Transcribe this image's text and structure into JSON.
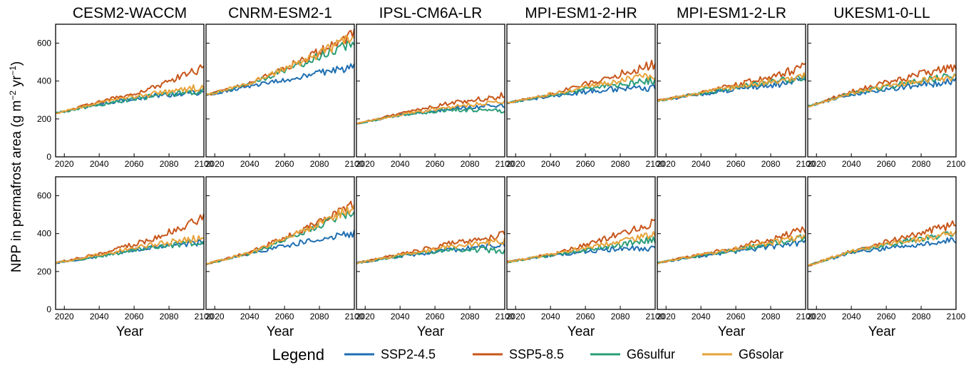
{
  "chart_data": {
    "type": "line",
    "layout": "2 rows x 6 columns small multiples",
    "ylabel_base": "NPP in permafrost area (g m",
    "ylabel_sup1": "−2",
    "ylabel_mid": " yr",
    "ylabel_sup2": "−1",
    "ylabel_end": ")",
    "xlabel": "Year",
    "xlim": [
      2015,
      2100
    ],
    "ylim": [
      0,
      700
    ],
    "xticks": [
      2020,
      2040,
      2060,
      2080,
      2100
    ],
    "yticks": [
      0,
      200,
      400,
      600
    ],
    "legend": {
      "title": "Legend",
      "placement": "bottom",
      "entries": [
        {
          "name": "SSP2-4.5",
          "color": "#1f6fb2"
        },
        {
          "name": "SSP5-8.5",
          "color": "#c8561a"
        },
        {
          "name": "G6sulfur",
          "color": "#2a9d78"
        },
        {
          "name": "G6solar",
          "color": "#e8a33a"
        }
      ]
    },
    "models": [
      "CESM2-WACCM",
      "CNRM-ESM2-1",
      "IPSL-CM6A-LR",
      "MPI-ESM1-2-HR",
      "MPI-ESM1-2-LR",
      "UKESM1-0-LL"
    ],
    "rows": [
      {
        "panels": [
          {
            "model": "CESM2-WACCM",
            "series": [
              {
                "name": "SSP2-4.5",
                "x": [
                  2015,
                  2040,
                  2070,
                  2100
                ],
                "y": [
                  230,
                  280,
                  320,
                  345
                ]
              },
              {
                "name": "SSP5-8.5",
                "x": [
                  2015,
                  2040,
                  2070,
                  2100
                ],
                "y": [
                  230,
                  290,
                  360,
                  470
                ]
              },
              {
                "name": "G6sulfur",
                "x": [
                  2015,
                  2040,
                  2070,
                  2100
                ],
                "y": [
                  230,
                  275,
                  320,
                  350
                ]
              },
              {
                "name": "G6solar",
                "x": [
                  2015,
                  2040,
                  2070,
                  2100
                ],
                "y": [
                  230,
                  285,
                  330,
                  370
                ]
              }
            ]
          },
          {
            "model": "CNRM-ESM2-1",
            "series": [
              {
                "name": "SSP2-4.5",
                "x": [
                  2015,
                  2040,
                  2070,
                  2100
                ],
                "y": [
                  325,
                  375,
                  420,
                  480
                ]
              },
              {
                "name": "SSP5-8.5",
                "x": [
                  2015,
                  2040,
                  2070,
                  2100
                ],
                "y": [
                  325,
                  390,
                  510,
                  645
                ]
              },
              {
                "name": "G6sulfur",
                "x": [
                  2015,
                  2040,
                  2070,
                  2100
                ],
                "y": [
                  325,
                  385,
                  490,
                  610
                ]
              },
              {
                "name": "G6solar",
                "x": [
                  2015,
                  2040,
                  2070,
                  2100
                ],
                "y": [
                  325,
                  390,
                  500,
                  635
                ]
              }
            ]
          },
          {
            "model": "IPSL-CM6A-LR",
            "series": [
              {
                "name": "SSP2-4.5",
                "x": [
                  2015,
                  2040,
                  2070,
                  2100
                ],
                "y": [
                  175,
                  220,
                  255,
                  275
                ]
              },
              {
                "name": "SSP5-8.5",
                "x": [
                  2015,
                  2040,
                  2070,
                  2100
                ],
                "y": [
                  175,
                  230,
                  285,
                  325
                ]
              },
              {
                "name": "G6sulfur",
                "x": [
                  2015,
                  2040,
                  2070,
                  2100
                ],
                "y": [
                  175,
                  220,
                  250,
                  240
                ]
              },
              {
                "name": "G6solar",
                "x": [
                  2015,
                  2040,
                  2070,
                  2100
                ],
                "y": [
                  175,
                  222,
                  265,
                  290
                ]
              }
            ]
          },
          {
            "model": "MPI-ESM1-2-HR",
            "series": [
              {
                "name": "SSP2-4.5",
                "x": [
                  2015,
                  2040,
                  2070,
                  2100
                ],
                "y": [
                  285,
                  320,
                  355,
                  365
                ]
              },
              {
                "name": "SSP5-8.5",
                "x": [
                  2015,
                  2040,
                  2070,
                  2100
                ],
                "y": [
                  285,
                  330,
                  410,
                  490
                ]
              },
              {
                "name": "G6sulfur",
                "x": [
                  2015,
                  2040,
                  2070,
                  2100
                ],
                "y": [
                  285,
                  325,
                  370,
                  405
                ]
              },
              {
                "name": "G6solar",
                "x": [
                  2015,
                  2040,
                  2070,
                  2100
                ],
                "y": [
                  285,
                  330,
                  385,
                  430
                ]
              }
            ]
          },
          {
            "model": "MPI-ESM1-2-LR",
            "series": [
              {
                "name": "SSP2-4.5",
                "x": [
                  2015,
                  2040,
                  2070,
                  2100
                ],
                "y": [
                  295,
                  330,
                  370,
                  400
                ]
              },
              {
                "name": "SSP5-8.5",
                "x": [
                  2015,
                  2040,
                  2070,
                  2100
                ],
                "y": [
                  295,
                  340,
                  400,
                  475
                ]
              },
              {
                "name": "G6sulfur",
                "x": [
                  2015,
                  2040,
                  2070,
                  2100
                ],
                "y": [
                  295,
                  335,
                  380,
                  420
                ]
              },
              {
                "name": "G6solar",
                "x": [
                  2015,
                  2040,
                  2070,
                  2100
                ],
                "y": [
                  295,
                  338,
                  385,
                  425
                ]
              }
            ]
          },
          {
            "model": "UKESM1-0-LL",
            "series": [
              {
                "name": "SSP2-4.5",
                "x": [
                  2015,
                  2040,
                  2070,
                  2100
                ],
                "y": [
                  265,
                  330,
                  370,
                  400
                ]
              },
              {
                "name": "SSP5-8.5",
                "x": [
                  2015,
                  2040,
                  2070,
                  2100
                ],
                "y": [
                  265,
                  345,
                  415,
                  480
                ]
              },
              {
                "name": "G6sulfur",
                "x": [
                  2015,
                  2040,
                  2070,
                  2100
                ],
                "y": [
                  265,
                  335,
                  385,
                  430
                ]
              },
              {
                "name": "G6solar",
                "x": [
                  2015,
                  2040,
                  2070,
                  2100
                ],
                "y": [
                  265,
                  338,
                  390,
                  425
                ]
              }
            ]
          }
        ]
      },
      {
        "panels": [
          {
            "model": "CESM2-WACCM",
            "series": [
              {
                "name": "SSP2-4.5",
                "x": [
                  2015,
                  2040,
                  2070,
                  2100
                ],
                "y": [
                  245,
                  280,
                  330,
                  355
                ]
              },
              {
                "name": "SSP5-8.5",
                "x": [
                  2015,
                  2040,
                  2070,
                  2100
                ],
                "y": [
                  245,
                  295,
                  370,
                  485
                ]
              },
              {
                "name": "G6sulfur",
                "x": [
                  2015,
                  2040,
                  2070,
                  2100
                ],
                "y": [
                  245,
                  280,
                  330,
                  360
                ]
              },
              {
                "name": "G6solar",
                "x": [
                  2015,
                  2040,
                  2070,
                  2100
                ],
                "y": [
                  245,
                  290,
                  340,
                  380
                ]
              }
            ]
          },
          {
            "model": "CNRM-ESM2-1",
            "series": [
              {
                "name": "SSP2-4.5",
                "x": [
                  2015,
                  2040,
                  2070,
                  2100
                ],
                "y": [
                  240,
                  295,
                  355,
                  400
                ]
              },
              {
                "name": "SSP5-8.5",
                "x": [
                  2015,
                  2040,
                  2070,
                  2100
                ],
                "y": [
                  240,
                  300,
                  420,
                  555
                ]
              },
              {
                "name": "G6sulfur",
                "x": [
                  2015,
                  2040,
                  2070,
                  2100
                ],
                "y": [
                  240,
                  295,
                  400,
                  520
                ]
              },
              {
                "name": "G6solar",
                "x": [
                  2015,
                  2040,
                  2070,
                  2100
                ],
                "y": [
                  240,
                  298,
                  410,
                  545
                ]
              }
            ]
          },
          {
            "model": "IPSL-CM6A-LR",
            "series": [
              {
                "name": "SSP2-4.5",
                "x": [
                  2015,
                  2040,
                  2070,
                  2100
                ],
                "y": [
                  245,
                  280,
                  315,
                  340
                ]
              },
              {
                "name": "SSP5-8.5",
                "x": [
                  2015,
                  2040,
                  2070,
                  2100
                ],
                "y": [
                  245,
                  290,
                  350,
                  395
                ]
              },
              {
                "name": "G6sulfur",
                "x": [
                  2015,
                  2040,
                  2070,
                  2100
                ],
                "y": [
                  245,
                  280,
                  320,
                  310
                ]
              },
              {
                "name": "G6solar",
                "x": [
                  2015,
                  2040,
                  2070,
                  2100
                ],
                "y": [
                  245,
                  285,
                  335,
                  360
                ]
              }
            ]
          },
          {
            "model": "MPI-ESM1-2-HR",
            "series": [
              {
                "name": "SSP2-4.5",
                "x": [
                  2015,
                  2040,
                  2070,
                  2100
                ],
                "y": [
                  250,
                  285,
                  315,
                  325
                ]
              },
              {
                "name": "SSP5-8.5",
                "x": [
                  2015,
                  2040,
                  2070,
                  2100
                ],
                "y": [
                  250,
                  290,
                  370,
                  460
                ]
              },
              {
                "name": "G6sulfur",
                "x": [
                  2015,
                  2040,
                  2070,
                  2100
                ],
                "y": [
                  250,
                  285,
                  330,
                  370
                ]
              },
              {
                "name": "G6solar",
                "x": [
                  2015,
                  2040,
                  2070,
                  2100
                ],
                "y": [
                  250,
                  290,
                  345,
                  395
                ]
              }
            ]
          },
          {
            "model": "MPI-ESM1-2-LR",
            "series": [
              {
                "name": "SSP2-4.5",
                "x": [
                  2015,
                  2040,
                  2070,
                  2100
                ],
                "y": [
                  245,
                  280,
                  320,
                  355
                ]
              },
              {
                "name": "SSP5-8.5",
                "x": [
                  2015,
                  2040,
                  2070,
                  2100
                ],
                "y": [
                  245,
                  290,
                  350,
                  420
                ]
              },
              {
                "name": "G6sulfur",
                "x": [
                  2015,
                  2040,
                  2070,
                  2100
                ],
                "y": [
                  245,
                  285,
                  330,
                  380
                ]
              },
              {
                "name": "G6solar",
                "x": [
                  2015,
                  2040,
                  2070,
                  2100
                ],
                "y": [
                  245,
                  288,
                  335,
                  385
                ]
              }
            ]
          },
          {
            "model": "UKESM1-0-LL",
            "series": [
              {
                "name": "SSP2-4.5",
                "x": [
                  2015,
                  2040,
                  2070,
                  2100
                ],
                "y": [
                  230,
                  300,
                  335,
                  365
                ]
              },
              {
                "name": "SSP5-8.5",
                "x": [
                  2015,
                  2040,
                  2070,
                  2100
                ],
                "y": [
                  230,
                  310,
                  380,
                  450
                ]
              },
              {
                "name": "G6sulfur",
                "x": [
                  2015,
                  2040,
                  2070,
                  2100
                ],
                "y": [
                  230,
                  305,
                  355,
                  405
                ]
              },
              {
                "name": "G6solar",
                "x": [
                  2015,
                  2040,
                  2070,
                  2100
                ],
                "y": [
                  230,
                  308,
                  360,
                  400
                ]
              }
            ]
          }
        ]
      }
    ]
  }
}
